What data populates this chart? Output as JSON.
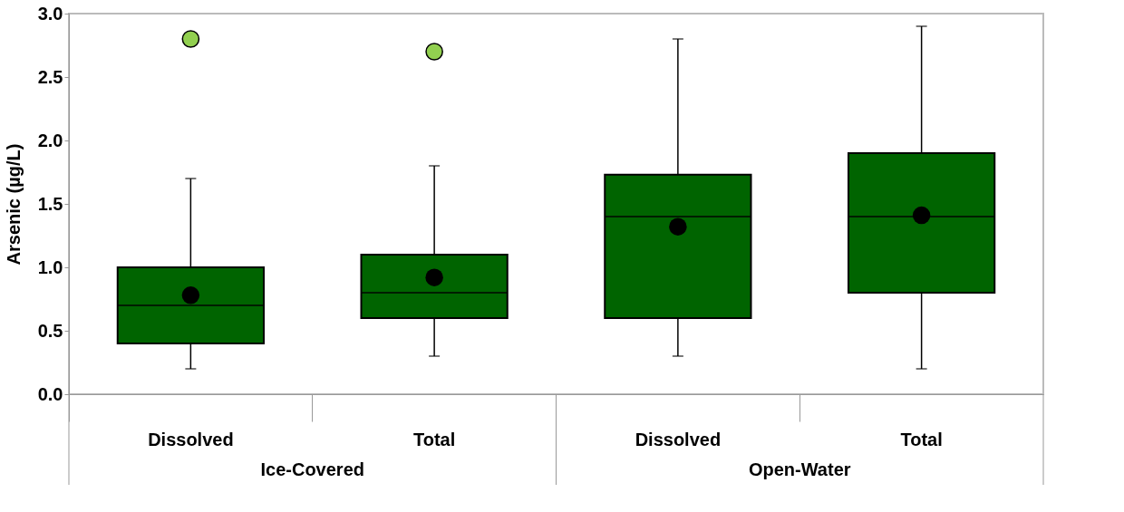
{
  "chart_data": {
    "type": "box",
    "ylabel": "Arsenic (µg/L)",
    "categories": [
      "Dissolved",
      "Total",
      "Dissolved",
      "Total"
    ],
    "boxes": [
      {
        "low": 0.2,
        "q1": 0.4,
        "median": 0.7,
        "q3": 1.0,
        "high": 1.7,
        "mean": 0.78,
        "outliers": [
          2.8
        ]
      },
      {
        "low": 0.3,
        "q1": 0.6,
        "median": 0.8,
        "q3": 1.1,
        "high": 1.8,
        "mean": 0.92,
        "outliers": [
          2.7
        ]
      },
      {
        "low": 0.3,
        "q1": 0.6,
        "median": 1.4,
        "q3": 1.73,
        "high": 2.8,
        "mean": 1.32
      },
      {
        "low": 0.2,
        "q1": 0.8,
        "median": 1.4,
        "q3": 1.9,
        "high": 2.9,
        "mean": 1.41
      }
    ],
    "color": "#006400",
    "ylim": [
      0,
      3
    ],
    "yticks": [
      {
        "value": 0,
        "label": "0.0"
      },
      0.5,
      {
        "value": 1,
        "label": "1.0"
      },
      1.5,
      {
        "value": 2,
        "label": "2.0"
      },
      2.5,
      {
        "value": 3,
        "label": "3.0"
      }
    ],
    "annotations": [
      "Ice-Covered",
      "Open-Water"
    ]
  }
}
